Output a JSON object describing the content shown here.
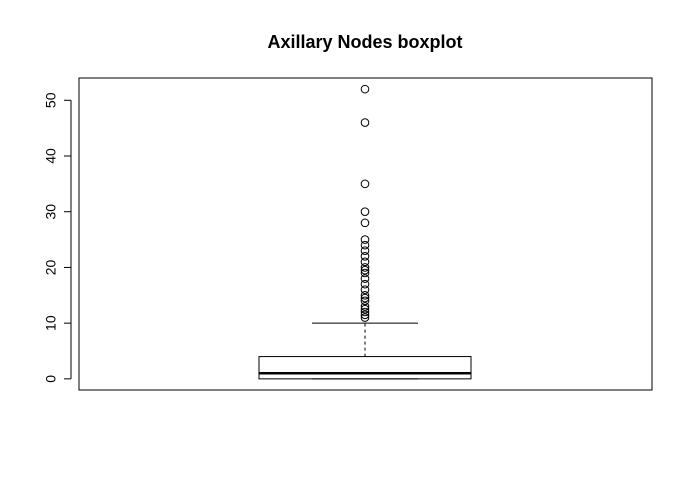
{
  "chart_data": {
    "type": "boxplot",
    "title": "Axillary Nodes boxplot",
    "xlabel": "",
    "ylabel": "",
    "ylim": [
      -2,
      54
    ],
    "yticks": [
      0,
      10,
      20,
      30,
      40,
      50
    ],
    "grid": false,
    "box": {
      "min": 0,
      "q1": 0,
      "median": 1,
      "q3": 4,
      "whisker_low": 0,
      "whisker_high": 10
    },
    "outliers": [
      11,
      11.5,
      12,
      12.5,
      13,
      14,
      14.5,
      15,
      16,
      17,
      18,
      19,
      19.5,
      20,
      21,
      22,
      23,
      24,
      25,
      28,
      30,
      35,
      46,
      52
    ],
    "colors": {
      "stroke": "#000000",
      "background": "#ffffff"
    }
  }
}
